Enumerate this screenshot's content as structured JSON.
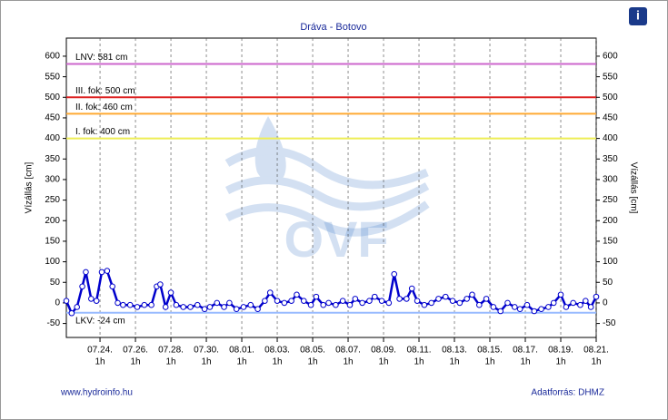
{
  "chart_data": {
    "type": "line",
    "title": "Dráva - Botovo",
    "ylabel": "Vízállás [cm]",
    "y2label": "Vízállás [cm]",
    "footer_left": "www.hydroinfo.hu",
    "footer_right": "Adatforrás: DHMZ",
    "info_icon": "i",
    "watermark": "OVF",
    "ylim": [
      -84,
      644
    ],
    "yticks": [
      -50,
      0,
      50,
      100,
      150,
      200,
      250,
      300,
      350,
      400,
      450,
      500,
      550,
      600
    ],
    "y2lim": [
      -84,
      644
    ],
    "y2ticks": [
      -50,
      0,
      50,
      100,
      150,
      200,
      250,
      300,
      350,
      400,
      450,
      500,
      550,
      600
    ],
    "xlim": [
      -1.9,
      28
    ],
    "xticks": [
      {
        "value": 0,
        "label": "07.24."
      },
      {
        "value": 2,
        "label": "07.26."
      },
      {
        "value": 4,
        "label": "07.28."
      },
      {
        "value": 6,
        "label": "07.30."
      },
      {
        "value": 8,
        "label": "08.01."
      },
      {
        "value": 10,
        "label": "08.03."
      },
      {
        "value": 12,
        "label": "08.05."
      },
      {
        "value": 14,
        "label": "08.07."
      },
      {
        "value": 16,
        "label": "08.09."
      },
      {
        "value": 18,
        "label": "08.11."
      },
      {
        "value": 20,
        "label": "08.13."
      },
      {
        "value": 22,
        "label": "08.15."
      },
      {
        "value": 24,
        "label": "08.17."
      },
      {
        "value": 26,
        "label": "08.19."
      },
      {
        "value": 28,
        "label": "08.21."
      }
    ],
    "xtick_hour_label": "1h",
    "grid": "x",
    "reference_lines": [
      {
        "label": "LNV: 581 cm",
        "value": 581,
        "color": "#cc66cc"
      },
      {
        "label": "III. fok: 500 cm",
        "value": 500,
        "color": "#dd2222"
      },
      {
        "label": "II. fok: 460 cm",
        "value": 460,
        "color": "#ffaa33"
      },
      {
        "label": "I. fok: 400 cm",
        "value": 400,
        "color": "#eeee55"
      },
      {
        "label": "LKV: -24 cm",
        "value": -24,
        "color": "#99bbff"
      }
    ],
    "x": [
      -1.9,
      -1.6,
      -1.3,
      -1.0,
      -0.8,
      -0.5,
      -0.2,
      0.1,
      0.4,
      0.7,
      1.0,
      1.3,
      1.7,
      2.1,
      2.5,
      2.9,
      3.2,
      3.4,
      3.7,
      4.0,
      4.3,
      4.7,
      5.1,
      5.5,
      5.9,
      6.2,
      6.6,
      7.0,
      7.3,
      7.7,
      8.1,
      8.5,
      8.9,
      9.3,
      9.6,
      10.0,
      10.4,
      10.8,
      11.1,
      11.5,
      11.9,
      12.2,
      12.6,
      12.9,
      13.3,
      13.7,
      14.1,
      14.4,
      14.8,
      15.2,
      15.5,
      15.9,
      16.3,
      16.6,
      16.9,
      17.3,
      17.6,
      17.9,
      18.3,
      18.7,
      19.1,
      19.5,
      19.9,
      20.3,
      20.7,
      21.0,
      21.4,
      21.8,
      22.2,
      22.6,
      23.0,
      23.4,
      23.7,
      24.1,
      24.5,
      24.9,
      25.3,
      25.6,
      26.0,
      26.3,
      26.7,
      27.1,
      27.4,
      27.7,
      28.0
    ],
    "series": [
      {
        "name": "Vízállás",
        "color": "#0000cc",
        "values": [
          5,
          -25,
          -10,
          40,
          75,
          10,
          5,
          75,
          78,
          40,
          0,
          -5,
          -5,
          -10,
          -5,
          -5,
          40,
          45,
          -10,
          25,
          -5,
          -10,
          -10,
          -5,
          -15,
          -10,
          0,
          -10,
          0,
          -15,
          -10,
          -5,
          -15,
          5,
          25,
          5,
          0,
          5,
          20,
          5,
          -5,
          15,
          -5,
          0,
          -5,
          5,
          -5,
          10,
          0,
          5,
          15,
          5,
          0,
          70,
          10,
          10,
          35,
          5,
          -5,
          0,
          10,
          15,
          5,
          0,
          10,
          20,
          -5,
          10,
          -10,
          -20,
          0,
          -10,
          -15,
          -5,
          -20,
          -15,
          -10,
          0,
          20,
          -10,
          0,
          -5,
          5,
          -10,
          15
        ]
      }
    ]
  }
}
